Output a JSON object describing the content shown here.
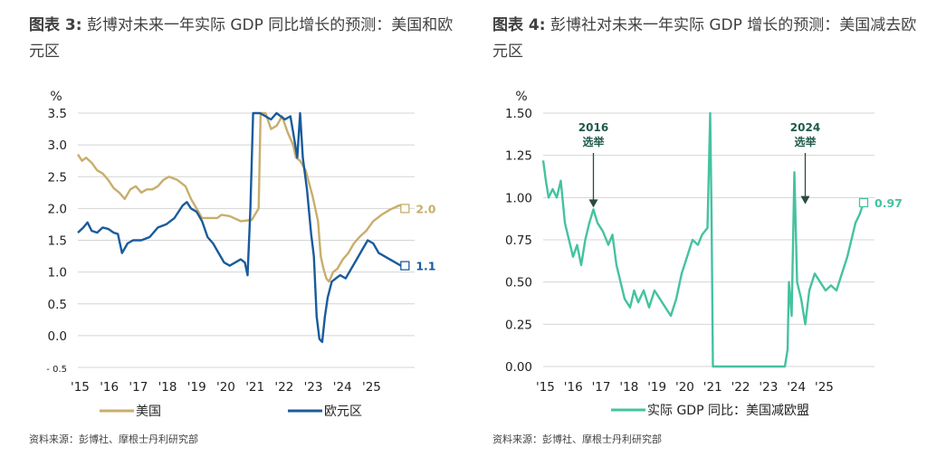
{
  "chart_data": [
    {
      "type": "line",
      "title_label": "图表 3:",
      "title": "彭博对未来一年实际 GDP 同比增长的预测：美国和欧元区",
      "unit": "%",
      "ylim": [
        -0.5,
        3.5
      ],
      "yticks": [
        "3.5",
        "3.0",
        "2.5",
        "2.0",
        "1.5",
        "1.0",
        "0.5",
        "0.0",
        "- 0.5"
      ],
      "xticks": [
        "'15",
        "'16",
        "'17",
        "'18",
        "'19",
        "'20",
        "'21",
        "'22",
        "'23",
        "'24",
        "'25"
      ],
      "grid": true,
      "legend_position": "bottom",
      "series": [
        {
          "name": "美国",
          "color": "#c8ae6b",
          "end_label": "2.0",
          "points": [
            [
              2015.0,
              2.85
            ],
            [
              2015.15,
              2.75
            ],
            [
              2015.3,
              2.8
            ],
            [
              2015.5,
              2.72
            ],
            [
              2015.7,
              2.6
            ],
            [
              2015.9,
              2.55
            ],
            [
              2016.1,
              2.45
            ],
            [
              2016.3,
              2.32
            ],
            [
              2016.5,
              2.25
            ],
            [
              2016.7,
              2.15
            ],
            [
              2016.9,
              2.3
            ],
            [
              2017.1,
              2.35
            ],
            [
              2017.3,
              2.25
            ],
            [
              2017.5,
              2.3
            ],
            [
              2017.7,
              2.3
            ],
            [
              2017.9,
              2.35
            ],
            [
              2018.1,
              2.45
            ],
            [
              2018.3,
              2.5
            ],
            [
              2018.6,
              2.45
            ],
            [
              2018.9,
              2.35
            ],
            [
              2019.1,
              2.15
            ],
            [
              2019.3,
              2.0
            ],
            [
              2019.5,
              1.85
            ],
            [
              2019.7,
              1.85
            ],
            [
              2019.9,
              1.85
            ],
            [
              2020.05,
              1.85
            ],
            [
              2020.2,
              1.9
            ],
            [
              2020.5,
              1.88
            ],
            [
              2020.9,
              1.8
            ],
            [
              2021.3,
              1.82
            ],
            [
              2021.55,
              2.0
            ],
            [
              2021.62,
              3.5
            ],
            [
              2021.8,
              3.5
            ],
            [
              2022.0,
              3.25
            ],
            [
              2022.2,
              3.3
            ],
            [
              2022.4,
              3.45
            ],
            [
              2022.6,
              3.2
            ],
            [
              2022.8,
              3.0
            ],
            [
              2022.9,
              2.8
            ],
            [
              2023.05,
              2.75
            ],
            [
              2023.25,
              2.6
            ],
            [
              2023.5,
              2.2
            ],
            [
              2023.7,
              1.8
            ],
            [
              2023.8,
              1.25
            ],
            [
              2023.9,
              1.05
            ],
            [
              2024.0,
              0.9
            ],
            [
              2024.1,
              0.85
            ],
            [
              2024.25,
              1.0
            ],
            [
              2024.4,
              1.05
            ],
            [
              2024.6,
              1.2
            ],
            [
              2024.8,
              1.3
            ],
            [
              2025.0,
              1.45
            ],
            [
              2025.2,
              1.55
            ],
            [
              2025.45,
              1.65
            ],
            [
              2025.7,
              1.8
            ],
            [
              2026.0,
              1.9
            ],
            [
              2026.3,
              1.98
            ],
            [
              2026.65,
              2.05
            ],
            [
              2026.85,
              2.0
            ]
          ]
        },
        {
          "name": "欧元区",
          "color": "#1a5b9c",
          "end_label": "1.1",
          "points": [
            [
              2015.0,
              1.62
            ],
            [
              2015.2,
              1.7
            ],
            [
              2015.35,
              1.78
            ],
            [
              2015.5,
              1.65
            ],
            [
              2015.7,
              1.62
            ],
            [
              2015.9,
              1.7
            ],
            [
              2016.1,
              1.68
            ],
            [
              2016.3,
              1.62
            ],
            [
              2016.45,
              1.6
            ],
            [
              2016.6,
              1.3
            ],
            [
              2016.8,
              1.45
            ],
            [
              2017.0,
              1.5
            ],
            [
              2017.3,
              1.5
            ],
            [
              2017.6,
              1.55
            ],
            [
              2017.9,
              1.7
            ],
            [
              2018.2,
              1.75
            ],
            [
              2018.5,
              1.85
            ],
            [
              2018.8,
              2.05
            ],
            [
              2018.95,
              2.1
            ],
            [
              2019.1,
              2.0
            ],
            [
              2019.3,
              1.95
            ],
            [
              2019.5,
              1.8
            ],
            [
              2019.7,
              1.55
            ],
            [
              2019.9,
              1.45
            ],
            [
              2020.1,
              1.3
            ],
            [
              2020.3,
              1.15
            ],
            [
              2020.5,
              1.1
            ],
            [
              2020.7,
              1.15
            ],
            [
              2020.9,
              1.2
            ],
            [
              2021.05,
              1.15
            ],
            [
              2021.15,
              0.95
            ],
            [
              2021.25,
              2.0
            ],
            [
              2021.35,
              3.5
            ],
            [
              2021.45,
              3.5
            ],
            [
              2021.6,
              3.5
            ],
            [
              2021.8,
              3.45
            ],
            [
              2022.0,
              3.4
            ],
            [
              2022.2,
              3.5
            ],
            [
              2022.5,
              3.4
            ],
            [
              2022.7,
              3.45
            ],
            [
              2022.8,
              3.2
            ],
            [
              2022.95,
              2.8
            ],
            [
              2023.05,
              3.5
            ],
            [
              2023.15,
              2.8
            ],
            [
              2023.3,
              2.3
            ],
            [
              2023.45,
              1.6
            ],
            [
              2023.55,
              1.25
            ],
            [
              2023.65,
              0.3
            ],
            [
              2023.75,
              -0.05
            ],
            [
              2023.85,
              -0.1
            ],
            [
              2023.95,
              0.3
            ],
            [
              2024.05,
              0.6
            ],
            [
              2024.2,
              0.85
            ],
            [
              2024.35,
              0.9
            ],
            [
              2024.5,
              0.95
            ],
            [
              2024.7,
              0.9
            ],
            [
              2024.9,
              1.05
            ],
            [
              2025.1,
              1.2
            ],
            [
              2025.3,
              1.35
            ],
            [
              2025.5,
              1.5
            ],
            [
              2025.7,
              1.45
            ],
            [
              2025.9,
              1.3
            ],
            [
              2026.1,
              1.25
            ],
            [
              2026.3,
              1.2
            ],
            [
              2026.5,
              1.15
            ],
            [
              2026.7,
              1.1
            ],
            [
              2026.85,
              1.1
            ]
          ]
        }
      ]
    },
    {
      "type": "line",
      "title_label": "图表 4:",
      "title": "彭博社对未来一年实际 GDP 增长的预测：美国减去欧元区",
      "unit": "%",
      "ylim": [
        0.0,
        1.5
      ],
      "yticks": [
        "1.50",
        "1.25",
        "1.00",
        "0.75",
        "0.50",
        "0.25",
        "0.00"
      ],
      "xticks": [
        "'15",
        "'16",
        "'17",
        "'18",
        "'19",
        "'20",
        "'21",
        "'22",
        "'23",
        "'24",
        "'25"
      ],
      "grid": true,
      "legend_position": "bottom",
      "annotations": [
        {
          "year": "2016",
          "text": "选举",
          "x": 2016.85,
          "y": 0.93
        },
        {
          "year": "2024",
          "text": "选举",
          "x": 2024.65,
          "y": 0.95
        }
      ],
      "series": [
        {
          "name": "实际 GDP 同比：美国减欧盟",
          "color": "#45c2a0",
          "end_label": "0.97",
          "points": [
            [
              2015.0,
              1.22
            ],
            [
              2015.1,
              1.1
            ],
            [
              2015.2,
              1.0
            ],
            [
              2015.35,
              1.05
            ],
            [
              2015.5,
              1.0
            ],
            [
              2015.65,
              1.1
            ],
            [
              2015.8,
              0.85
            ],
            [
              2015.95,
              0.75
            ],
            [
              2016.1,
              0.65
            ],
            [
              2016.25,
              0.72
            ],
            [
              2016.4,
              0.6
            ],
            [
              2016.55,
              0.75
            ],
            [
              2016.7,
              0.85
            ],
            [
              2016.85,
              0.93
            ],
            [
              2017.0,
              0.85
            ],
            [
              2017.2,
              0.8
            ],
            [
              2017.4,
              0.72
            ],
            [
              2017.55,
              0.78
            ],
            [
              2017.7,
              0.6
            ],
            [
              2017.85,
              0.5
            ],
            [
              2018.0,
              0.4
            ],
            [
              2018.2,
              0.35
            ],
            [
              2018.35,
              0.45
            ],
            [
              2018.5,
              0.38
            ],
            [
              2018.7,
              0.45
            ],
            [
              2018.9,
              0.35
            ],
            [
              2019.1,
              0.45
            ],
            [
              2019.3,
              0.4
            ],
            [
              2019.5,
              0.35
            ],
            [
              2019.7,
              0.3
            ],
            [
              2019.9,
              0.4
            ],
            [
              2020.1,
              0.55
            ],
            [
              2020.3,
              0.65
            ],
            [
              2020.5,
              0.75
            ],
            [
              2020.7,
              0.72
            ],
            [
              2020.85,
              0.78
            ],
            [
              2021.05,
              0.82
            ],
            [
              2021.15,
              1.5
            ],
            [
              2021.2,
              0.9
            ],
            [
              2021.25,
              0.0
            ],
            [
              2021.3,
              0.0
            ],
            [
              2023.9,
              0.0
            ],
            [
              2024.0,
              0.1
            ],
            [
              2024.05,
              0.5
            ],
            [
              2024.15,
              0.3
            ],
            [
              2024.25,
              1.15
            ],
            [
              2024.35,
              0.5
            ],
            [
              2024.5,
              0.4
            ],
            [
              2024.65,
              0.25
            ],
            [
              2024.8,
              0.45
            ],
            [
              2025.0,
              0.55
            ],
            [
              2025.2,
              0.5
            ],
            [
              2025.4,
              0.45
            ],
            [
              2025.6,
              0.48
            ],
            [
              2025.8,
              0.45
            ],
            [
              2026.0,
              0.55
            ],
            [
              2026.2,
              0.65
            ],
            [
              2026.35,
              0.75
            ],
            [
              2026.5,
              0.85
            ],
            [
              2026.65,
              0.9
            ],
            [
              2026.8,
              0.97
            ]
          ]
        }
      ]
    }
  ],
  "source_left": "资料来源：彭博社、摩根士丹利研究部",
  "source_right": "资料来源：彭博社、摩根士丹利研究部"
}
